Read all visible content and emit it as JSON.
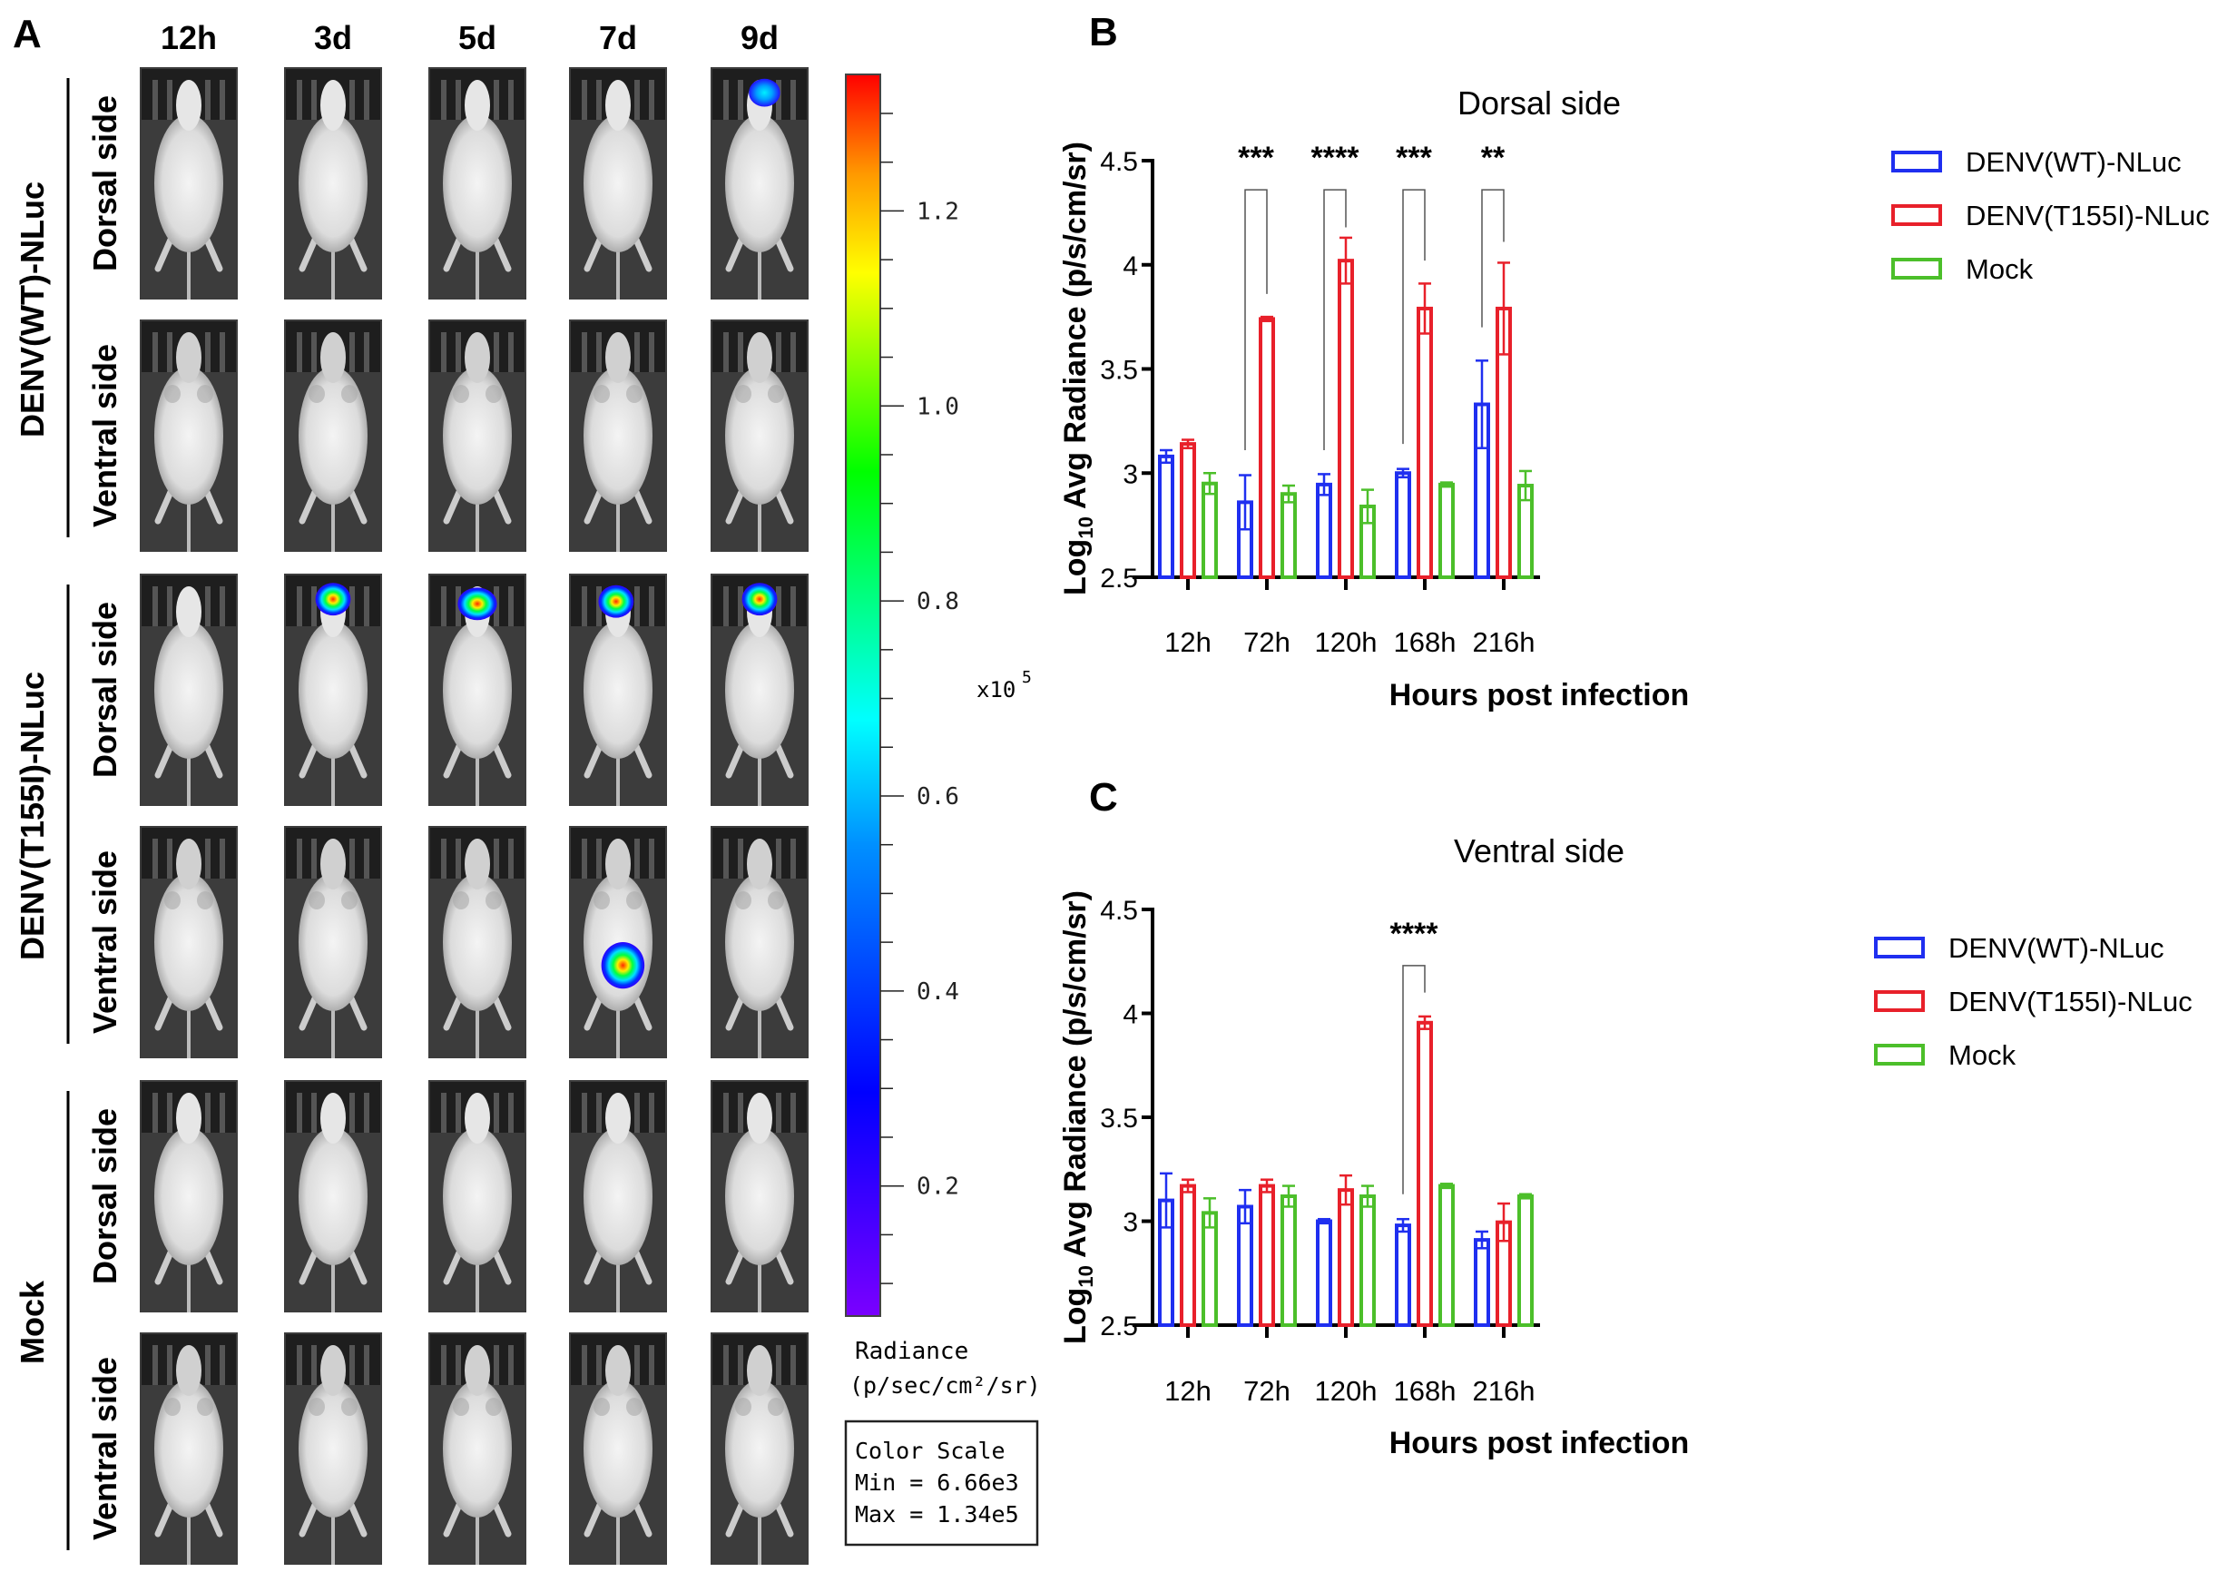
{
  "panel_a": {
    "label": "A",
    "timepoints": [
      "12h",
      "3d",
      "5d",
      "7d",
      "9d"
    ],
    "groups": [
      {
        "name": "DENV(WT)-NLuc",
        "rows": [
          "Dorsal side",
          "Ventral side"
        ]
      },
      {
        "name": "DENV(T155I)-NLuc",
        "rows": [
          "Dorsal side",
          "Ventral side"
        ]
      },
      {
        "name": "Mock",
        "rows": [
          "Dorsal side",
          "Ventral side"
        ]
      }
    ],
    "colorbar": {
      "ticks": [
        "1.2",
        "1.0",
        "0.8",
        "0.6",
        "0.4",
        "0.2"
      ],
      "tick_values": [
        1.2,
        1.0,
        0.8,
        0.6,
        0.4,
        0.2
      ],
      "range": [
        0.0666,
        1.34
      ],
      "multiplier": "x10",
      "exponent": "5",
      "title_line1": "Radiance",
      "title_line2": "(p/sec/cm²/sr)",
      "scale_box": [
        "Color Scale",
        "Min = 6.66e3",
        "Max = 1.34e5"
      ]
    }
  },
  "chart_data": [
    {
      "panel_label": "B",
      "type": "bar",
      "title": "Dorsal side",
      "xlabel": "Hours post infection",
      "ylabel_main": "Log",
      "ylabel_sub": "10",
      "ylabel_rest": " Avg Radiance (p/s/cm/sr)",
      "ylim": [
        2.5,
        4.5
      ],
      "yticks": [
        "2.5",
        "3",
        "3.5",
        "4",
        "4.5"
      ],
      "ytick_values": [
        2.5,
        3,
        3.5,
        4,
        4.5
      ],
      "categories": [
        "12h",
        "72h",
        "120h",
        "168h",
        "216h"
      ],
      "legend_position": "top-right",
      "series": [
        {
          "name": "DENV(WT)-NLuc",
          "color": "#1f2ff0",
          "values": [
            3.08,
            2.86,
            2.945,
            3.0,
            3.33
          ],
          "errors": [
            0.03,
            0.13,
            0.05,
            0.02,
            0.21
          ]
        },
        {
          "name": "DENV(T155I)-NLuc",
          "color": "#e8202a",
          "values": [
            3.14,
            3.74,
            4.02,
            3.79,
            3.79
          ],
          "errors": [
            0.02,
            0.01,
            0.11,
            0.12,
            0.22
          ]
        },
        {
          "name": "Mock",
          "color": "#4cbf2a",
          "values": [
            2.95,
            2.9,
            2.84,
            2.945,
            2.94
          ],
          "errors": [
            0.05,
            0.04,
            0.08,
            0.01,
            0.07
          ]
        }
      ],
      "significance": [
        {
          "category": "72h",
          "stars": "***",
          "bracket": 4.36,
          "left_end": 3.11,
          "right_end": 3.86
        },
        {
          "category": "120h",
          "stars": "****",
          "bracket": 4.36,
          "left_end": 3.11,
          "right_end": 4.18
        },
        {
          "category": "168h",
          "stars": "***",
          "bracket": 4.36,
          "left_end": 3.14,
          "right_end": 4.02
        },
        {
          "category": "216h",
          "stars": "**",
          "bracket": 4.36,
          "left_end": 3.7,
          "right_end": 4.11
        }
      ]
    },
    {
      "panel_label": "C",
      "type": "bar",
      "title": "Ventral side",
      "xlabel": "Hours post infection",
      "ylabel_main": "Log",
      "ylabel_sub": "10",
      "ylabel_rest": " Avg Radiance (p/s/cm/sr)",
      "ylim": [
        2.5,
        4.5
      ],
      "yticks": [
        "2.5",
        "3",
        "3.5",
        "4",
        "4.5"
      ],
      "ytick_values": [
        2.5,
        3,
        3.5,
        4,
        4.5
      ],
      "categories": [
        "12h",
        "72h",
        "120h",
        "168h",
        "216h"
      ],
      "legend_position": "top-right",
      "series": [
        {
          "name": "DENV(WT)-NLuc",
          "color": "#1f2ff0",
          "values": [
            3.1,
            3.07,
            3.0,
            2.98,
            2.91
          ],
          "errors": [
            0.13,
            0.08,
            0.01,
            0.03,
            0.04
          ]
        },
        {
          "name": "DENV(T155I)-NLuc",
          "color": "#e8202a",
          "values": [
            3.17,
            3.17,
            3.15,
            3.955,
            2.995
          ],
          "errors": [
            0.03,
            0.03,
            0.07,
            0.03,
            0.09
          ]
        },
        {
          "name": "Mock",
          "color": "#4cbf2a",
          "values": [
            3.04,
            3.12,
            3.12,
            3.17,
            3.12
          ],
          "errors": [
            0.07,
            0.05,
            0.05,
            0.01,
            0.01
          ]
        }
      ],
      "significance": [
        {
          "category": "168h",
          "stars": "****",
          "bracket": 4.23,
          "left_end": 3.13,
          "right_end": 4.1
        }
      ]
    }
  ]
}
